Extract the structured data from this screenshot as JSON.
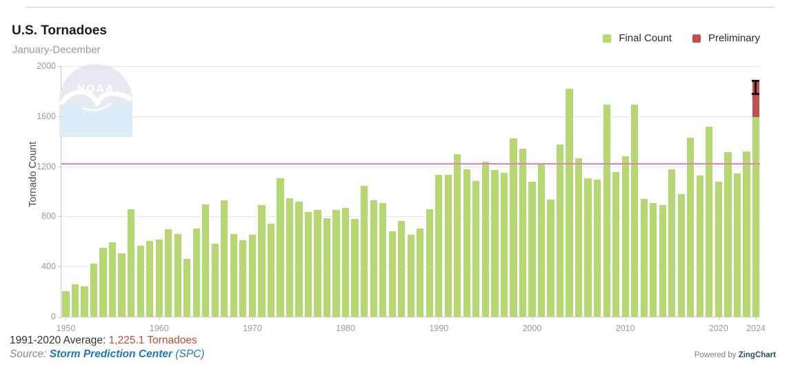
{
  "header": {
    "title": "U.S. Tornadoes",
    "subtitle": "January-December"
  },
  "legend": [
    {
      "label": "Final Count",
      "color": "#b5d873"
    },
    {
      "label": "Preliminary",
      "color": "#c0504d"
    }
  ],
  "watermark": {
    "text": "NOAA"
  },
  "chart_data": {
    "type": "bar",
    "title": "U.S. Tornadoes",
    "subtitle": "January-December",
    "ylabel": "Tornado Count",
    "ylim": [
      0,
      2000
    ],
    "yticks": [
      0,
      400,
      800,
      1200,
      1600,
      2000
    ],
    "xticks": [
      1950,
      1960,
      1970,
      1980,
      1990,
      2000,
      2010,
      2020,
      2024
    ],
    "start_year": 1950,
    "series_name": "Final Count",
    "final_count": [
      201,
      260,
      240,
      421,
      550,
      593,
      504,
      856,
      564,
      604,
      616,
      697,
      657,
      464,
      704,
      897,
      585,
      926,
      660,
      608,
      653,
      888,
      741,
      1102,
      947,
      920,
      835,
      852,
      788,
      852,
      866,
      783,
      1046,
      931,
      907,
      684,
      764,
      656,
      702,
      856,
      1133,
      1132,
      1298,
      1176,
      1082,
      1235,
      1173,
      1148,
      1424,
      1339,
      1075,
      1215,
      934,
      1374,
      1817,
      1265,
      1103,
      1096,
      1692,
      1156,
      1282,
      1691,
      938,
      907,
      888,
      1177,
      976,
      1429,
      1126,
      1517,
      1075,
      1314,
      1143,
      1320,
      1593
    ],
    "preliminary": {
      "year": 2024,
      "final_portion": 1593,
      "preliminary_total": 1886,
      "whisker_low": 1782,
      "whisker_high": 1892
    },
    "average_line": {
      "value": 1225.1,
      "label": "1991-2020 Average",
      "color": "#e083ad"
    },
    "grid": true,
    "legend_position": "top-right"
  },
  "colors": {
    "bar_green": "#b5d873",
    "bar_red": "#c0504d",
    "average_line": "#e083ad",
    "axis": "#c9c9c9",
    "gridline": "#e4e4e4",
    "tick_text": "#9b9b9b"
  },
  "footer": {
    "average_label": "1991-2020 Average:",
    "average_value": "1,225.1 Tornadoes",
    "source_label": "Source:",
    "source_link": "Storm Prediction Center",
    "source_suffix": "(SPC)",
    "powered_by": "Powered by",
    "brand": "ZingChart"
  }
}
